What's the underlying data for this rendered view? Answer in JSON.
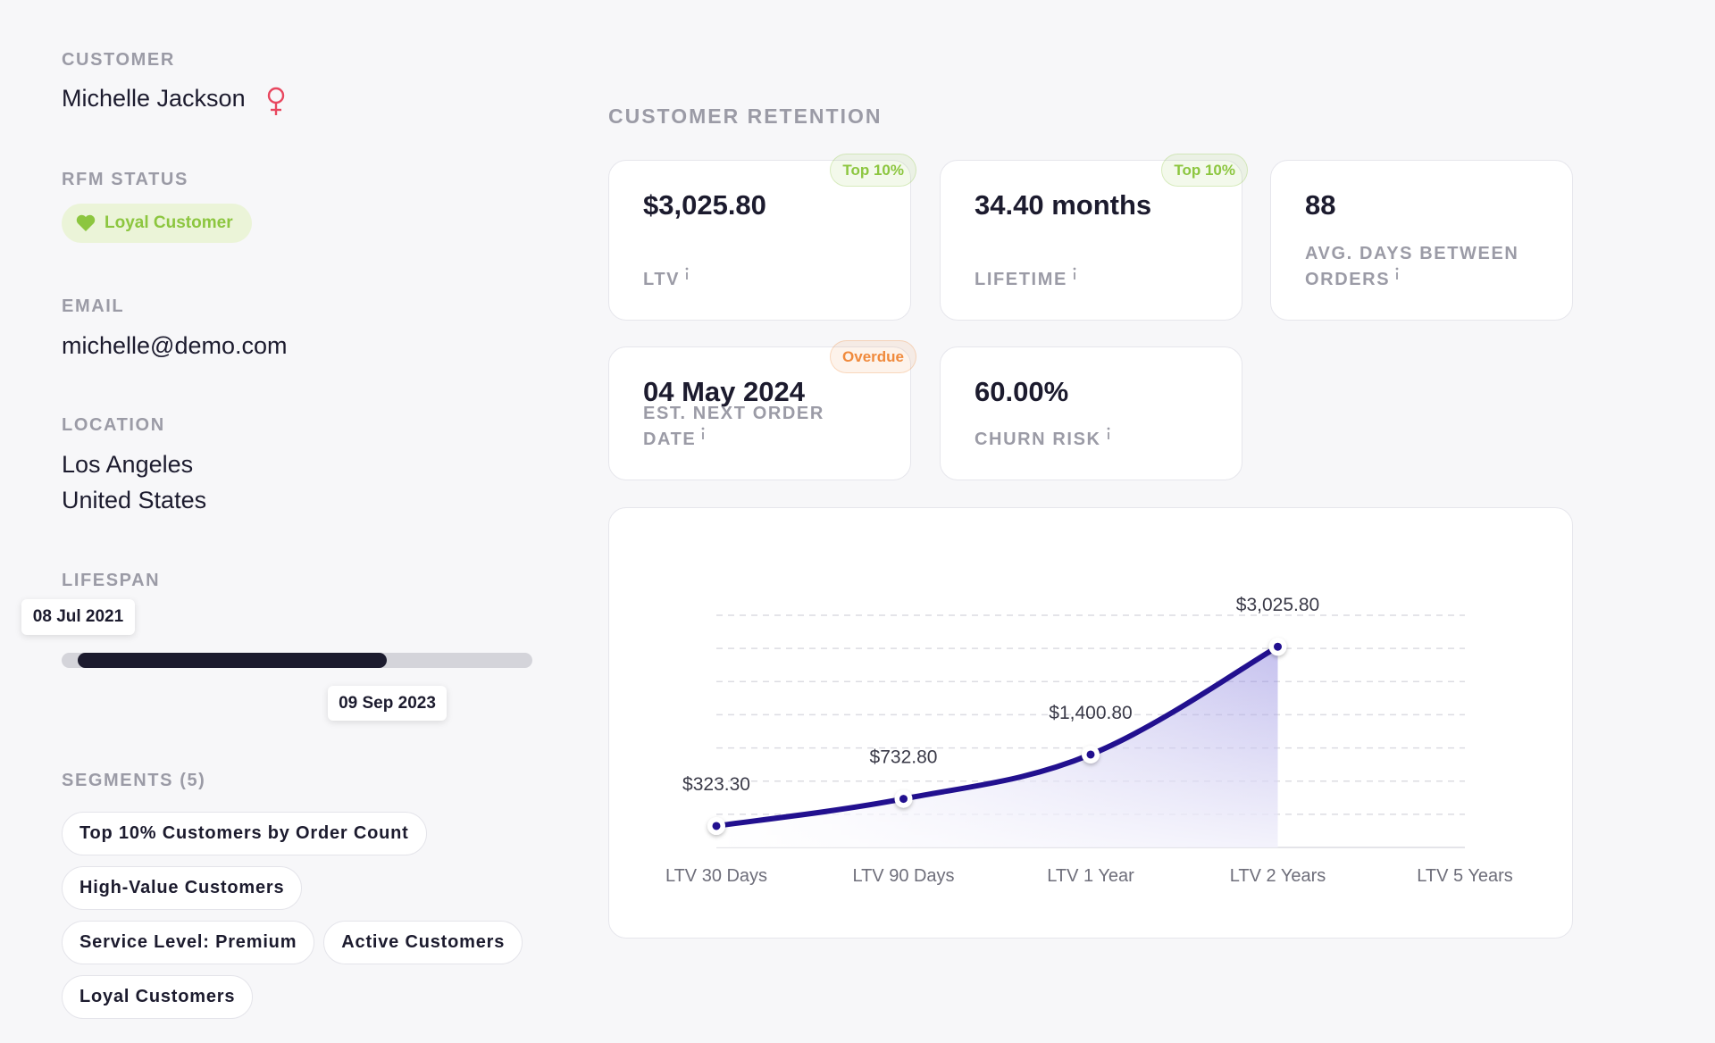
{
  "customer": {
    "label": "CUSTOMER",
    "name": "Michelle Jackson"
  },
  "rfm": {
    "label": "RFM STATUS",
    "status": "Loyal Customer"
  },
  "email": {
    "label": "EMAIL",
    "value": "michelle@demo.com"
  },
  "location": {
    "label": "LOCATION",
    "city": "Los Angeles",
    "country": "United States"
  },
  "lifespan": {
    "label": "LIFESPAN",
    "start": "08 Jul 2021",
    "end": "09 Sep 2023"
  },
  "segments": {
    "label": "SEGMENTS (5)",
    "items": [
      "Top 10% Customers by Order Count",
      "High-Value Customers",
      "Service Level: Premium",
      "Active Customers",
      "Loyal Customers"
    ]
  },
  "retention": {
    "title": "CUSTOMER RETENTION",
    "cards": [
      {
        "value": "$3,025.80",
        "label": "LTV",
        "badge": "Top 10%",
        "badge_color": "#8cc63f"
      },
      {
        "value": "34.40 months",
        "label": "LIFETIME",
        "badge": "Top 10%",
        "badge_color": "#8cc63f"
      },
      {
        "value": "88",
        "label": "AVG. DAYS BETWEEN ORDERS"
      },
      {
        "value": "04 May 2024",
        "label": "EST. NEXT ORDER DATE",
        "badge": "Overdue",
        "badge_color": "#f08a3c"
      },
      {
        "value": "60.00%",
        "label": "CHURN RISK"
      }
    ]
  },
  "chart_data": {
    "type": "line",
    "categories": [
      "LTV 30 Days",
      "LTV 90 Days",
      "LTV 1 Year",
      "LTV 2 Years",
      "LTV 5 Years"
    ],
    "values": [
      323.3,
      732.8,
      1400.8,
      3025.8,
      null
    ],
    "value_labels": [
      "$323.30",
      "$732.80",
      "$1,400.80",
      "$3,025.80",
      null
    ],
    "color": "#22108f",
    "ylim": [
      0,
      3500
    ],
    "yticks": [
      0,
      500,
      1000,
      1500,
      2000,
      2500,
      3000,
      3500
    ],
    "grid": true
  }
}
